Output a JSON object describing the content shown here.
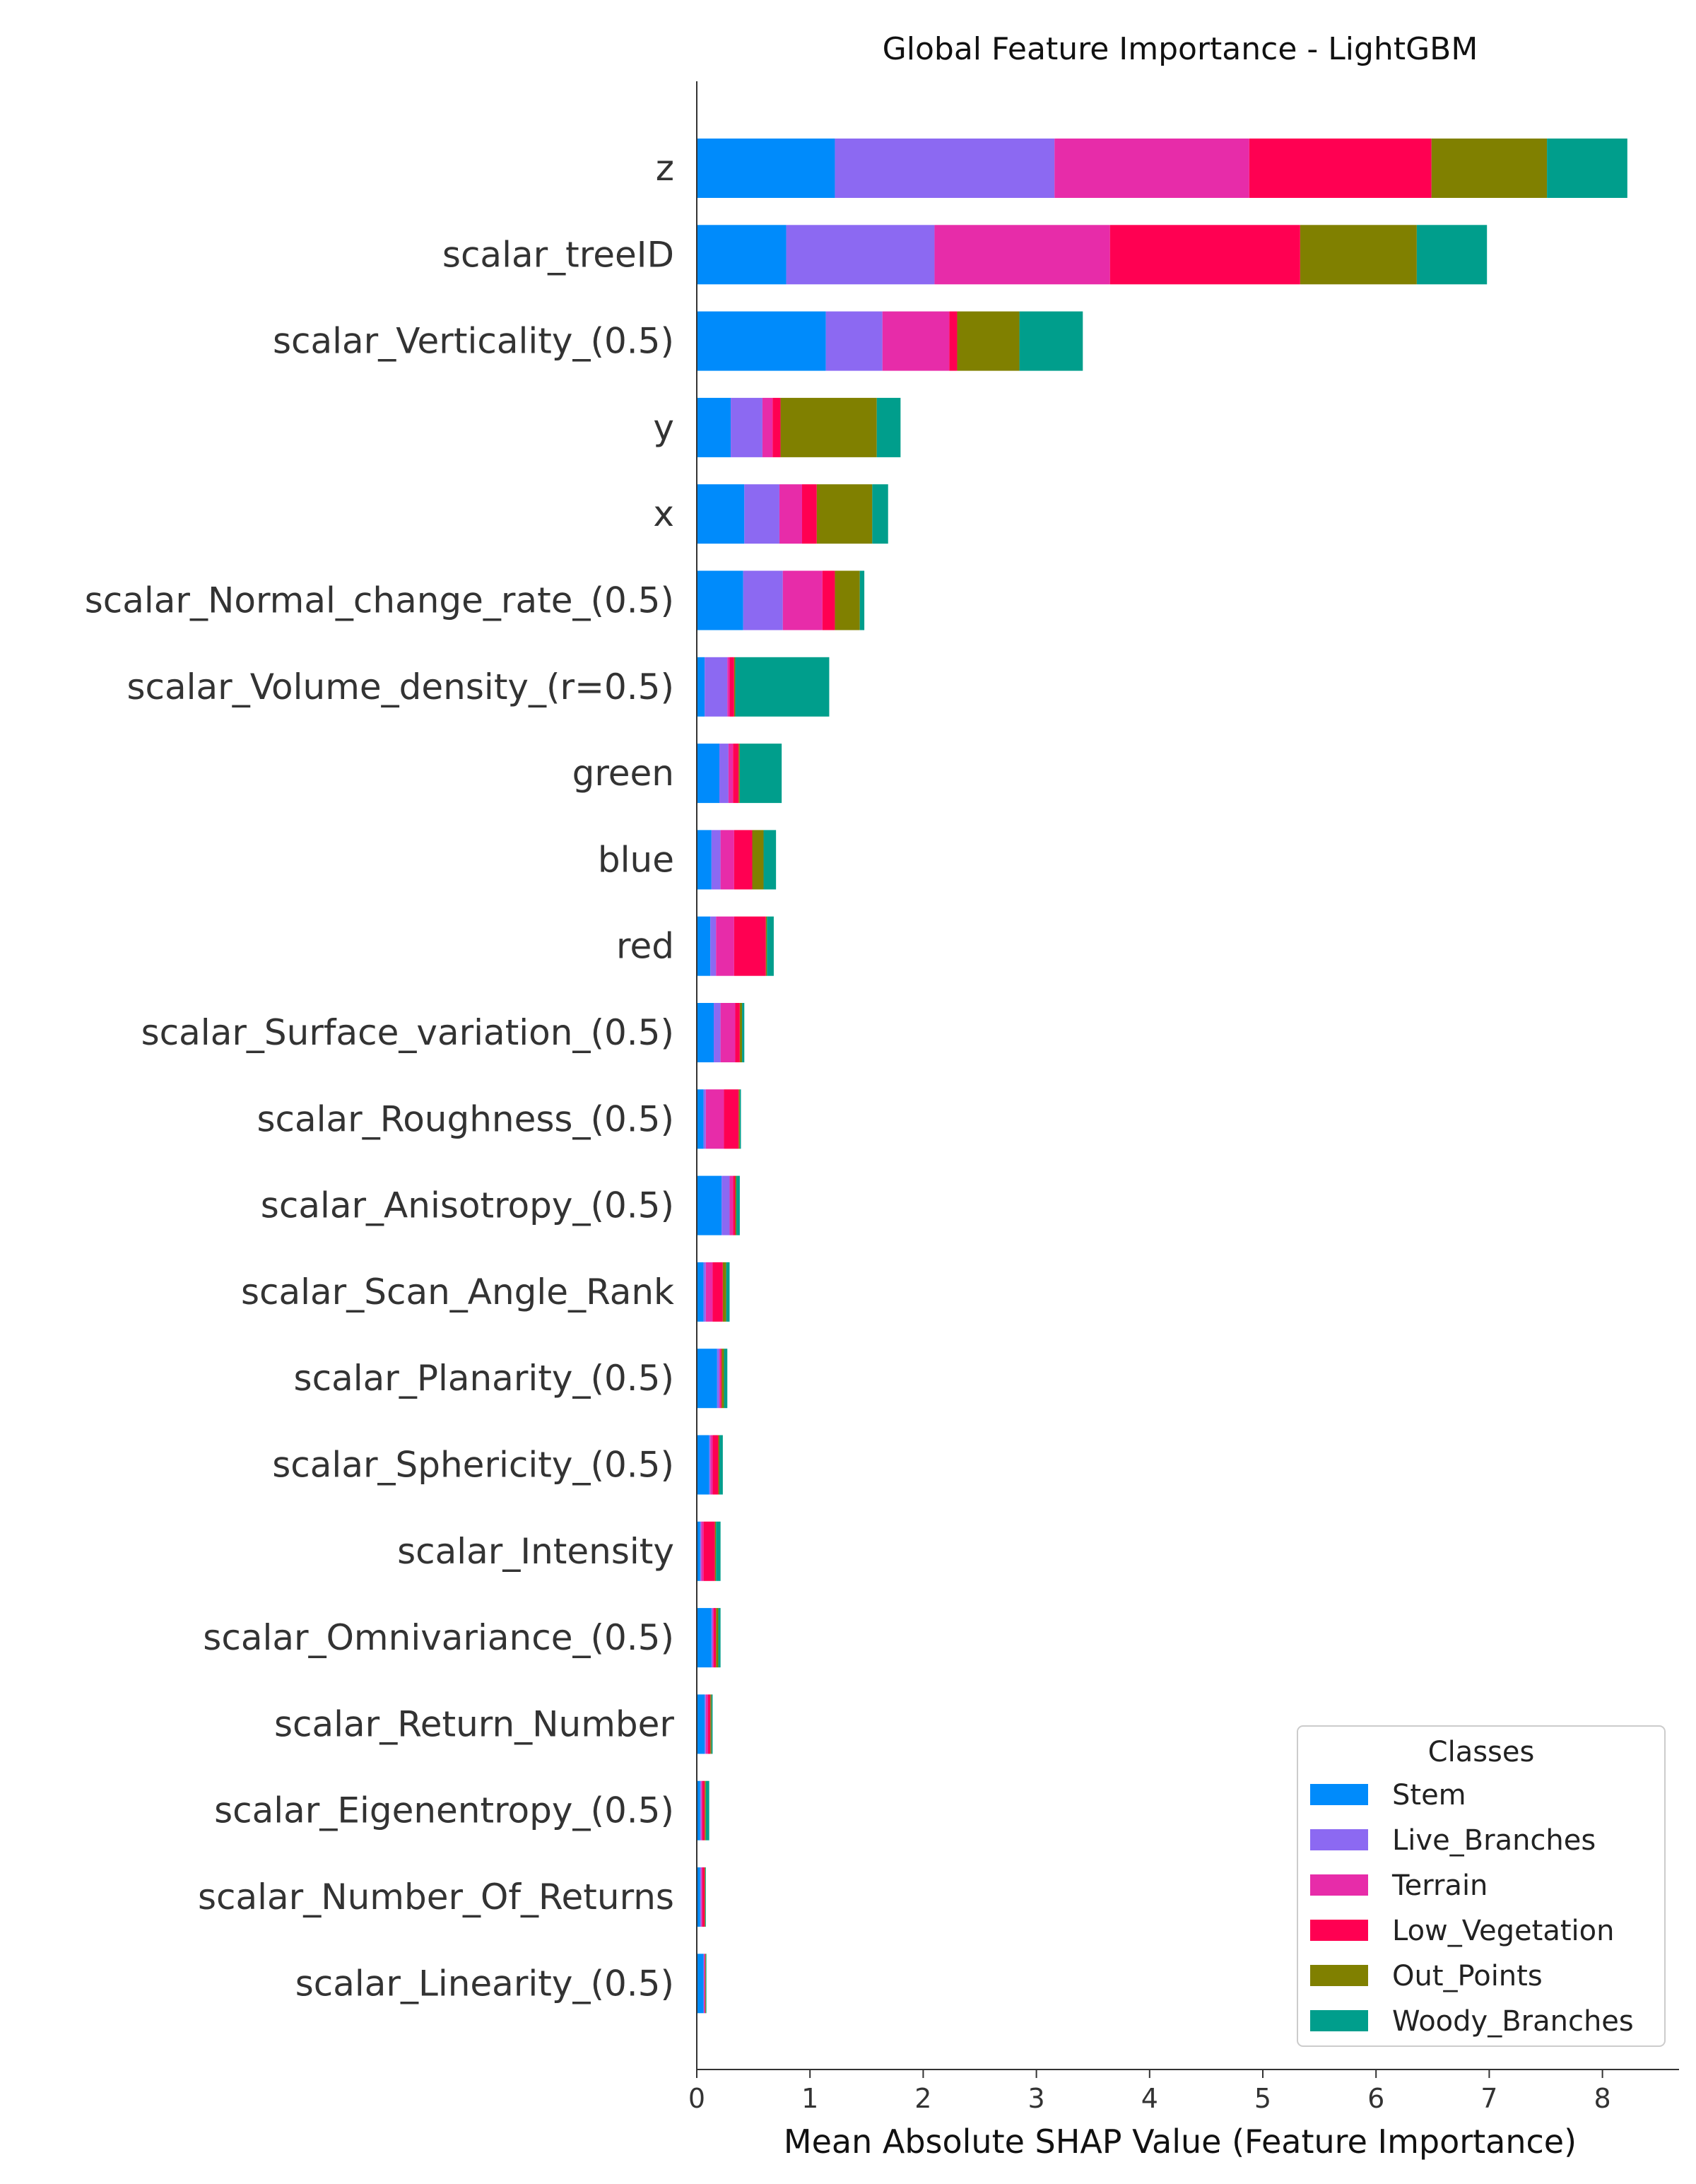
{
  "chart_data": {
    "type": "bar",
    "orientation": "horizontal",
    "stacked": true,
    "title": "Global Feature Importance - LightGBM",
    "xlabel": "Mean Absolute SHAP Value (Feature Importance)",
    "ylabel": "",
    "xlim": [
      0,
      8.65
    ],
    "xticks": [
      "0",
      "1",
      "2",
      "3",
      "4",
      "5",
      "6",
      "7",
      "8"
    ],
    "grid": false,
    "legend": {
      "title": "Classes",
      "placement": "bottom-right"
    },
    "categories": [
      "z",
      "scalar_treeID",
      "scalar_Verticality_(0.5)",
      "y",
      "x",
      "scalar_Normal_change_rate_(0.5)",
      "scalar_Volume_density_(r=0.5)",
      "green",
      "blue",
      "red",
      "scalar_Surface_variation_(0.5)",
      "scalar_Roughness_(0.5)",
      "scalar_Anisotropy_(0.5)",
      "scalar_Scan_Angle_Rank",
      "scalar_Planarity_(0.5)",
      "scalar_Sphericity_(0.5)",
      "scalar_Intensity",
      "scalar_Omnivariance_(0.5)",
      "scalar_Return_Number",
      "scalar_Eigenentropy_(0.5)",
      "scalar_Number_Of_Returns",
      "scalar_Linearity_(0.5)"
    ],
    "series": [
      {
        "name": "Stem",
        "color": "#008bfb",
        "values": [
          1.22,
          0.79,
          1.14,
          0.3,
          0.42,
          0.41,
          0.07,
          0.2,
          0.13,
          0.12,
          0.15,
          0.06,
          0.22,
          0.06,
          0.18,
          0.11,
          0.03,
          0.13,
          0.07,
          0.03,
          0.03,
          0.06
        ]
      },
      {
        "name": "Live_Branches",
        "color": "#8c69f2",
        "values": [
          1.94,
          1.31,
          0.5,
          0.28,
          0.31,
          0.35,
          0.2,
          0.08,
          0.08,
          0.05,
          0.06,
          0.02,
          0.07,
          0.02,
          0.02,
          0.01,
          0.01,
          0.01,
          0.01,
          0.01,
          0.01,
          0.005
        ]
      },
      {
        "name": "Terrain",
        "color": "#e72ca9",
        "values": [
          1.72,
          1.55,
          0.59,
          0.09,
          0.2,
          0.35,
          0.02,
          0.04,
          0.12,
          0.16,
          0.13,
          0.16,
          0.03,
          0.06,
          0.01,
          0.02,
          0.02,
          0.01,
          0.02,
          0.01,
          0.01,
          0.005
        ]
      },
      {
        "name": "Low_Vegetation",
        "color": "#ff0052",
        "values": [
          1.61,
          1.68,
          0.07,
          0.07,
          0.13,
          0.11,
          0.04,
          0.05,
          0.16,
          0.28,
          0.04,
          0.13,
          0.02,
          0.09,
          0.01,
          0.05,
          0.1,
          0.02,
          0.02,
          0.02,
          0.02,
          0.005
        ]
      },
      {
        "name": "Out_Points",
        "color": "#808000",
        "values": [
          1.02,
          1.03,
          0.55,
          0.85,
          0.49,
          0.22,
          0.01,
          0.01,
          0.1,
          0.01,
          0.02,
          0.01,
          0.01,
          0.03,
          0.02,
          0.01,
          0.01,
          0.02,
          0.01,
          0.01,
          0.005,
          0.005
        ]
      },
      {
        "name": "Woody_Branches",
        "color": "#009e8c",
        "values": [
          0.71,
          0.62,
          0.56,
          0.21,
          0.14,
          0.04,
          0.83,
          0.37,
          0.11,
          0.06,
          0.02,
          0.01,
          0.03,
          0.03,
          0.03,
          0.03,
          0.04,
          0.02,
          0.01,
          0.03,
          0.005,
          0.005
        ]
      }
    ]
  }
}
